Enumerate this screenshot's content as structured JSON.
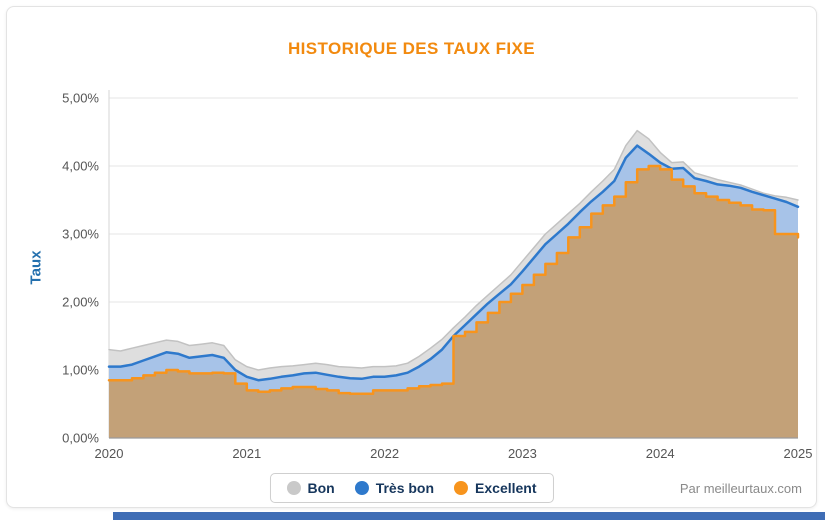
{
  "title": "HISTORIQUE DES TAUX FIXE",
  "attribution": "Par meilleurtaux.com",
  "legend": {
    "items": [
      {
        "label": "Bon",
        "color": "#c9c9c9"
      },
      {
        "label": "Très bon",
        "color": "#2e79cc"
      },
      {
        "label": "Excellent",
        "color": "#f7941d"
      }
    ]
  },
  "colors": {
    "title": "#f28a0f",
    "axis_title": "#2470ae",
    "footer_bar": "#3f6db5",
    "grid": "#e4e4e4",
    "axis_line": "#9a9a9a",
    "left_axis_line": "#d6d6d6",
    "tick_text": "#555555"
  },
  "chart_data": {
    "type": "area",
    "title": "HISTORIQUE DES TAUX FIXE",
    "ylabel": "Taux",
    "xlabel": "",
    "ylim": [
      0,
      5
    ],
    "grid": true,
    "legend_position": "bottom",
    "yticks": [
      "0,00%",
      "1,00%",
      "2,00%",
      "3,00%",
      "4,00%",
      "5,00%"
    ],
    "xticks": [
      "2020",
      "2021",
      "2022",
      "2023",
      "2024",
      "2025"
    ],
    "x_unit": "month",
    "series": [
      {
        "name": "Bon",
        "color": "#c2c2c2",
        "fill": "#dedede",
        "step": false,
        "line_width": 1.5,
        "values": [
          1.3,
          1.28,
          1.32,
          1.36,
          1.4,
          1.44,
          1.42,
          1.36,
          1.38,
          1.4,
          1.36,
          1.15,
          1.05,
          1.0,
          1.03,
          1.05,
          1.06,
          1.08,
          1.1,
          1.08,
          1.05,
          1.04,
          1.03,
          1.05,
          1.05,
          1.06,
          1.1,
          1.2,
          1.32,
          1.45,
          1.62,
          1.78,
          1.95,
          2.1,
          2.25,
          2.4,
          2.6,
          2.8,
          3.0,
          3.15,
          3.3,
          3.45,
          3.62,
          3.78,
          3.95,
          4.3,
          4.52,
          4.4,
          4.2,
          4.05,
          4.06,
          3.9,
          3.85,
          3.8,
          3.76,
          3.72,
          3.66,
          3.6,
          3.56,
          3.54,
          3.5
        ]
      },
      {
        "name": "Très bon",
        "color": "#2e79cc",
        "fill": "#a7c3e8",
        "step": false,
        "line_width": 2.5,
        "values": [
          1.05,
          1.05,
          1.08,
          1.14,
          1.2,
          1.26,
          1.24,
          1.18,
          1.2,
          1.22,
          1.18,
          1.0,
          0.9,
          0.85,
          0.87,
          0.9,
          0.92,
          0.95,
          0.96,
          0.93,
          0.9,
          0.88,
          0.87,
          0.9,
          0.9,
          0.92,
          0.96,
          1.05,
          1.16,
          1.3,
          1.5,
          1.66,
          1.82,
          1.98,
          2.12,
          2.26,
          2.45,
          2.65,
          2.85,
          3.0,
          3.15,
          3.32,
          3.48,
          3.62,
          3.78,
          4.12,
          4.3,
          4.18,
          4.05,
          3.96,
          3.97,
          3.82,
          3.78,
          3.73,
          3.71,
          3.68,
          3.62,
          3.57,
          3.52,
          3.47,
          3.4
        ]
      },
      {
        "name": "Excellent",
        "color": "#f7941d",
        "fill": "#c3a178",
        "step": true,
        "line_width": 2.5,
        "values": [
          0.85,
          0.85,
          0.88,
          0.92,
          0.96,
          1.0,
          0.98,
          0.95,
          0.95,
          0.96,
          0.95,
          0.8,
          0.7,
          0.68,
          0.7,
          0.73,
          0.75,
          0.75,
          0.72,
          0.7,
          0.66,
          0.65,
          0.65,
          0.7,
          0.7,
          0.7,
          0.73,
          0.76,
          0.78,
          0.8,
          1.5,
          1.56,
          1.7,
          1.84,
          2.0,
          2.12,
          2.25,
          2.4,
          2.56,
          2.72,
          2.95,
          3.1,
          3.3,
          3.42,
          3.55,
          3.76,
          3.95,
          4.0,
          3.95,
          3.8,
          3.7,
          3.6,
          3.55,
          3.5,
          3.46,
          3.42,
          3.36,
          3.35,
          3.0,
          3.0,
          2.95
        ]
      }
    ]
  }
}
